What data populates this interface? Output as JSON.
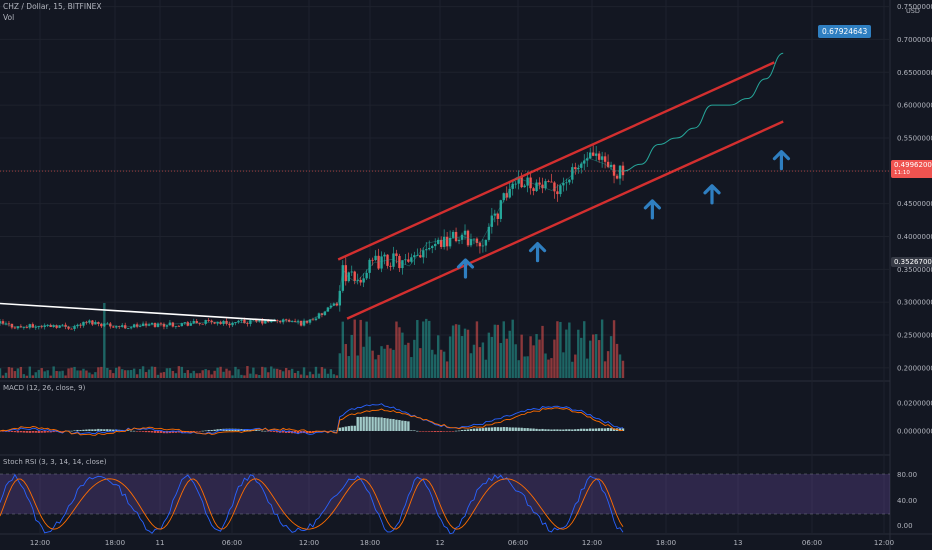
{
  "header": {
    "symbol_line": "CHZ / Dollar, 15, BITFINEX",
    "vol_label": "Vol"
  },
  "indicators": {
    "macd_label": "MACD (12, 26, close, 9)",
    "stoch_label": "Stoch RSI (3, 3, 14, 14, close)"
  },
  "price_axis": {
    "unit": "USD",
    "ticks": [
      "0.75000000",
      "0.70000000",
      "0.65000000",
      "0.60000000",
      "0.55000000",
      "0.50000000",
      "0.45000000",
      "0.40000000",
      "0.35000000",
      "0.30000000",
      "0.25000000",
      "0.20000000"
    ],
    "tick_values": [
      0.75,
      0.7,
      0.65,
      0.6,
      0.55,
      0.5,
      0.45,
      0.4,
      0.35,
      0.3,
      0.25,
      0.2
    ],
    "current_price_tag": "0.49962000",
    "current_price_sub": "11:10",
    "level_tag": "0.35267000",
    "target_tag": "0.67924643"
  },
  "macd_axis": {
    "ticks": [
      "0.02000000",
      "0.00000000"
    ],
    "tick_values": [
      0.02,
      0.0
    ]
  },
  "stoch_axis": {
    "ticks": [
      "80.00",
      "40.00",
      "0.00"
    ],
    "tick_values": [
      80,
      40,
      0
    ]
  },
  "time_axis": {
    "labels": [
      "12:00",
      "18:00",
      "11",
      "06:00",
      "12:00",
      "18:00",
      "12",
      "06:00",
      "12:00",
      "18:00",
      "13",
      "06:00",
      "12:00"
    ]
  },
  "colors": {
    "background": "#131722",
    "up": "#26a69a",
    "down": "#ef5350",
    "channel": "#d32f2f",
    "arrow": "#2f7fc1",
    "trendline": "#ffffff",
    "projection": "#26a69a",
    "macd_line": "#2962ff",
    "signal_line": "#ff6d00",
    "stoch_band": "#7e57c2"
  },
  "chart_data": {
    "type": "line",
    "title": "CHZ / Dollar, 15, BITFINEX",
    "close_series": {
      "x": [
        0,
        0.02,
        0.04,
        0.06,
        0.08,
        0.1,
        0.12,
        0.14,
        0.16,
        0.18,
        0.2,
        0.22,
        0.24,
        0.26,
        0.28,
        0.3,
        0.32,
        0.34,
        0.36,
        0.38,
        0.385,
        0.39,
        0.4,
        0.42,
        0.44,
        0.46,
        0.48,
        0.5,
        0.52,
        0.54,
        0.56,
        0.58,
        0.6,
        0.62,
        0.64,
        0.66,
        0.68,
        0.69,
        0.7
      ],
      "y": [
        0.268,
        0.262,
        0.263,
        0.265,
        0.262,
        0.27,
        0.266,
        0.262,
        0.265,
        0.266,
        0.267,
        0.268,
        0.27,
        0.268,
        0.27,
        0.27,
        0.272,
        0.268,
        0.28,
        0.3,
        0.35,
        0.34,
        0.33,
        0.36,
        0.365,
        0.355,
        0.39,
        0.395,
        0.4,
        0.39,
        0.44,
        0.49,
        0.48,
        0.47,
        0.49,
        0.52,
        0.51,
        0.5,
        0.4996
      ]
    },
    "projection_path": {
      "x": [
        0.7,
        0.72,
        0.74,
        0.76,
        0.78,
        0.8,
        0.82,
        0.84,
        0.86,
        0.88
      ],
      "y": [
        0.4996,
        0.51,
        0.54,
        0.55,
        0.565,
        0.6,
        0.6,
        0.61,
        0.64,
        0.679
      ]
    },
    "channel_upper": {
      "x": [
        0.38,
        0.87
      ],
      "y": [
        0.365,
        0.665
      ]
    },
    "channel_lower": {
      "x": [
        0.39,
        0.88
      ],
      "y": [
        0.275,
        0.575
      ]
    },
    "trendline": {
      "x": [
        0.0,
        0.31
      ],
      "y": [
        0.298,
        0.272
      ]
    },
    "ylim": [
      0.18,
      0.76
    ],
    "grid": true
  }
}
